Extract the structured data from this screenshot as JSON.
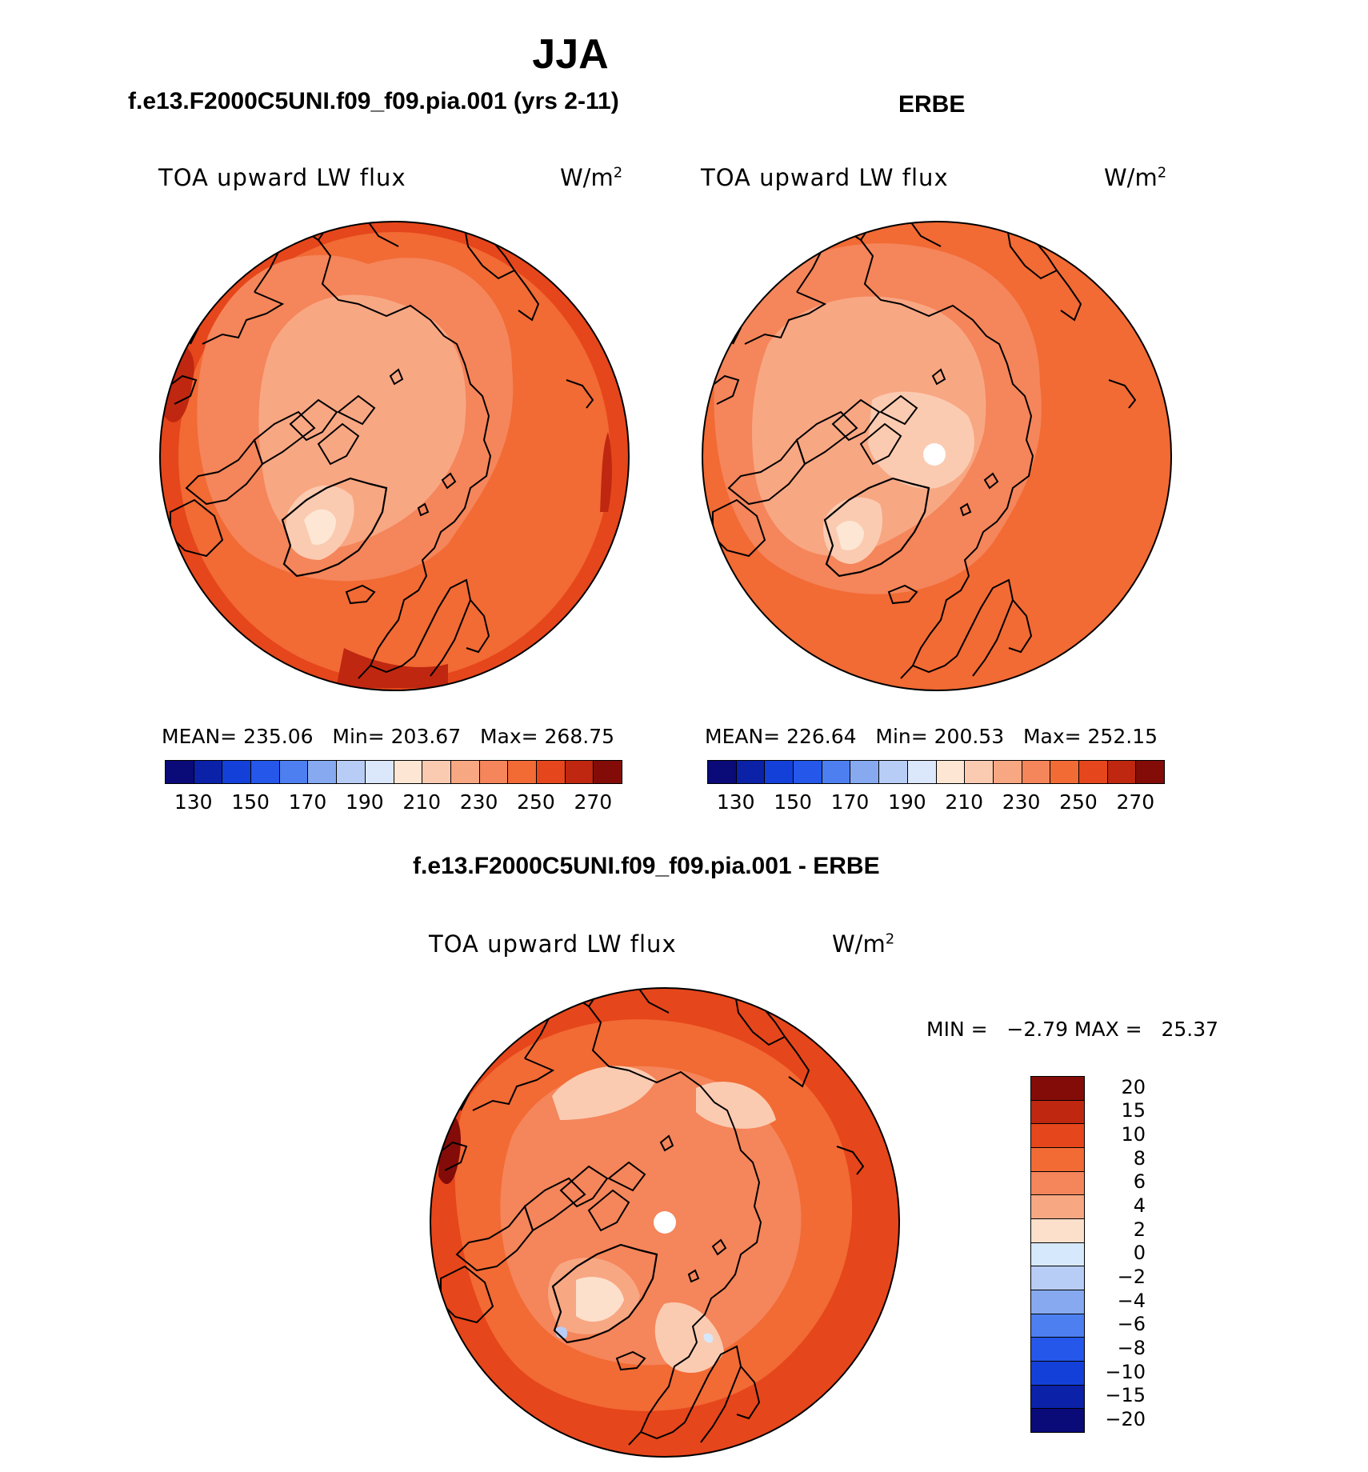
{
  "figure": {
    "season": "JJA",
    "left_panel_title": "f.e13.F2000C5UNI.f09_f09.pia.001 (yrs 2-11)",
    "right_panel_title": "ERBE",
    "diff_panel_title": "f.e13.F2000C5UNI.f09_f09.pia.001 - ERBE"
  },
  "panels": {
    "model": {
      "variable": "TOA upward LW flux",
      "units_base": "W/m",
      "units_exp": "2",
      "stats": "MEAN= 235.06   Min= 203.67   Max= 268.75",
      "mean": 235.06,
      "min": 203.67,
      "max": 268.75
    },
    "obs": {
      "variable": "TOA upward LW flux",
      "units_base": "W/m",
      "units_exp": "2",
      "stats": "MEAN= 226.64   Min= 200.53   Max= 252.15",
      "mean": 226.64,
      "min": 200.53,
      "max": 252.15
    },
    "diff": {
      "variable": "TOA upward LW flux",
      "units_base": "W/m",
      "units_exp": "2",
      "stats": "MIN =   −2.79 MAX =   25.37",
      "min": -2.79,
      "max": 25.37
    }
  },
  "colorbars": {
    "abs": {
      "labels": [
        "130",
        "150",
        "170",
        "190",
        "210",
        "230",
        "250",
        "270"
      ],
      "colors": [
        "#0a0a78",
        "#0b21a8",
        "#1340d8",
        "#2457ea",
        "#4d7ff0",
        "#86a9f0",
        "#b8cdf5",
        "#dbe7fa",
        "#fde7d4",
        "#fbcbb1",
        "#f8a783",
        "#f5855a",
        "#f26a34",
        "#e6461b",
        "#bf2710",
        "#830c08"
      ]
    },
    "diff": {
      "labels": [
        "20",
        "15",
        "10",
        "8",
        "6",
        "4",
        "2",
        "0",
        "−2",
        "−4",
        "−6",
        "−8",
        "−10",
        "−15",
        "−20"
      ],
      "colors": [
        "#830c08",
        "#bf2710",
        "#e6461b",
        "#f26a34",
        "#f5855a",
        "#f8a783",
        "#fde0cc",
        "#d6e8fb",
        "#b8cdf5",
        "#86a9f0",
        "#4d7ff0",
        "#2457ea",
        "#1340d8",
        "#0b21a8",
        "#0a0a78"
      ]
    }
  },
  "map_colors": {
    "outer_hot": "#e0441d",
    "warm": "#f26a34",
    "mid": "#f5855a",
    "light": "#f8a783",
    "pale": "#fbcbb1",
    "palest": "#fde7d4",
    "coast": "#000000"
  }
}
